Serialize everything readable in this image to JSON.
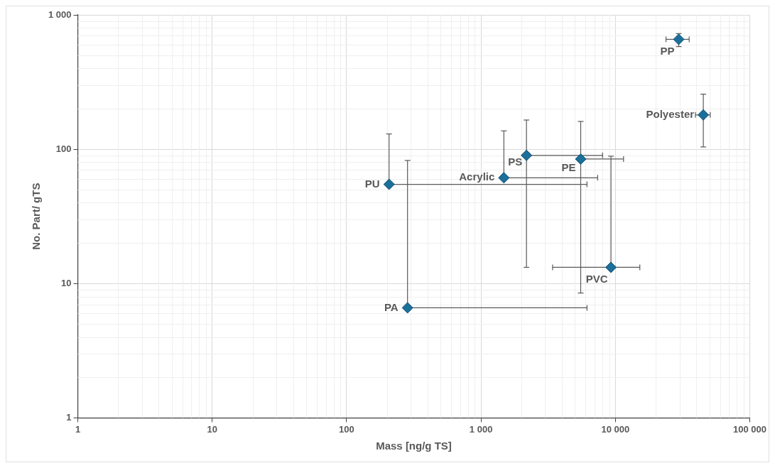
{
  "chart_data": {
    "type": "scatter",
    "xlabel": "Mass [ng/g TS]",
    "ylabel": "No. Part/ gTS",
    "log": "xy",
    "grid": true,
    "marker": "diamond",
    "legend": false,
    "xlim": [
      1,
      100000
    ],
    "ylim": [
      1,
      1000
    ],
    "xticks": [
      1,
      10,
      100,
      {
        "value": 1000,
        "label": "1 000"
      },
      {
        "value": 10000,
        "label": "10 000"
      },
      {
        "value": 100000,
        "label": "100 000"
      }
    ],
    "yticks": [
      1,
      10,
      100,
      {
        "value": 1000,
        "label": "1 000"
      }
    ],
    "series": [
      {
        "color": "#1b6f9a",
        "x": [
          29600,
          45100,
          2180,
          5520,
          1480,
          207,
          284,
          9270
        ],
        "values": [
          658,
          180,
          90,
          84.5,
          61.3,
          54.8,
          6.6,
          13.2
        ],
        "errors": [
          [
            581,
            726
          ],
          [
            104,
            257
          ],
          [
            13.2,
            165
          ],
          [
            8.5,
            161
          ],
          [
            61.3,
            137
          ],
          [
            54.8,
            130
          ],
          [
            6.6,
            82.5
          ],
          [
            13.2,
            88.8
          ]
        ],
        "xerrors": [
          [
            23800,
            35400
          ],
          [
            39400,
            50800
          ],
          [
            2180,
            8030
          ],
          [
            5520,
            11500
          ],
          [
            1480,
            7380
          ],
          [
            207,
            6150
          ],
          [
            284,
            6150
          ],
          [
            3410,
            15200
          ]
        ]
      }
    ],
    "annotations": [
      {
        "text": "PP",
        "x": 29600,
        "y": 658
      },
      {
        "text": "Polyester",
        "x": 45100,
        "y": 180
      },
      {
        "text": "PS",
        "x": 2180,
        "y": 90
      },
      {
        "text": "PE",
        "x": 5520,
        "y": 84.5
      },
      {
        "text": "Acrylic",
        "x": 1480,
        "y": 61.3
      },
      {
        "text": "PU",
        "x": 207,
        "y": 54.8
      },
      {
        "text": "PA",
        "x": 284,
        "y": 6.6
      },
      {
        "text": "PVC",
        "x": 9270,
        "y": 13.2
      }
    ]
  }
}
